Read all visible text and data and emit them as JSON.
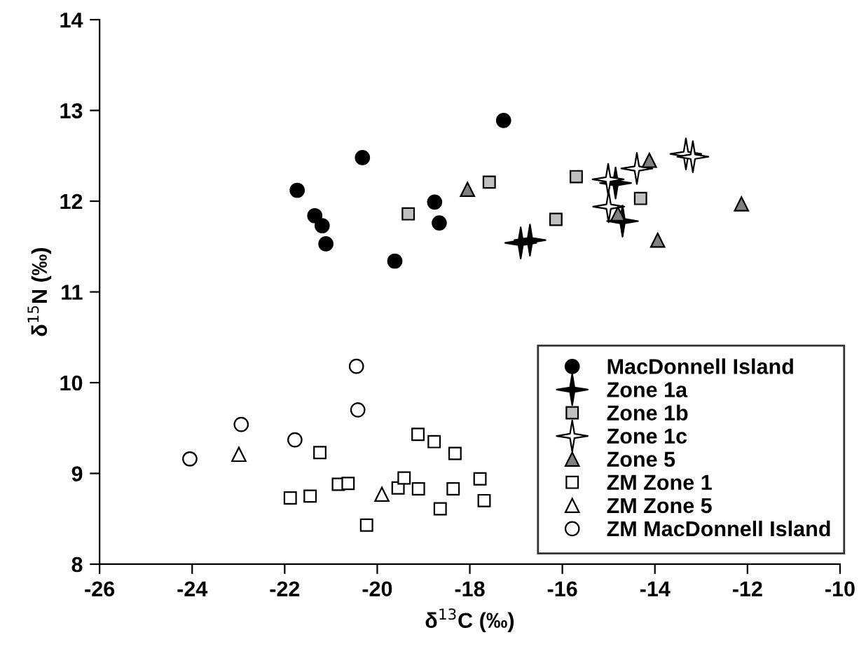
{
  "chart_data": {
    "type": "scatter",
    "xlabel": "δ$^{13}$C (‰)",
    "ylabel": "δ$^{15}$N (‰)",
    "xlim": [
      -26,
      -10
    ],
    "xticks": [
      -26,
      -24,
      -22,
      -20,
      -18,
      -16,
      -14,
      -12,
      -10
    ],
    "ylim": [
      8,
      14
    ],
    "yticks": [
      8,
      9,
      10,
      11,
      12,
      13,
      14
    ],
    "grid": false,
    "legend": "bottom right",
    "series": [
      {
        "name": "MacDonnell Island",
        "color": "#000000",
        "marker": "circle",
        "x": [
          -21.73,
          -20.32,
          -21.35,
          -21.19,
          -21.11,
          -19.62,
          -18.76,
          -18.66,
          -17.27
        ],
        "values": [
          12.12,
          12.48,
          11.84,
          11.73,
          11.53,
          11.34,
          11.99,
          11.76,
          12.89
        ]
      },
      {
        "name": "Zone 1a",
        "color": "#000000",
        "marker": "star",
        "x": [
          -16.9,
          -16.7,
          -14.85,
          -14.7
        ],
        "values": [
          11.54,
          11.57,
          12.2,
          11.78
        ]
      },
      {
        "name": "Zone 1b",
        "color": "#bfbfbf",
        "marker": "square",
        "x": [
          -19.33,
          -17.58,
          -16.14,
          -15.7,
          -14.31
        ],
        "values": [
          11.86,
          12.21,
          11.8,
          12.27,
          12.03
        ]
      },
      {
        "name": "Zone 1c",
        "color": "#ffffff",
        "marker": "star",
        "x": [
          -15.01,
          -14.39,
          -15.0,
          -13.33,
          -13.18
        ],
        "values": [
          12.24,
          12.36,
          11.94,
          12.52,
          12.49
        ]
      },
      {
        "name": "Zone 5",
        "color": "#808080",
        "marker": "triangle",
        "x": [
          -18.05,
          -14.12,
          -14.8,
          -12.13,
          -13.94
        ],
        "values": [
          12.13,
          12.45,
          11.86,
          11.97,
          11.57
        ]
      },
      {
        "name": "ZM Zone 1",
        "color": "#ffffff",
        "marker": "square",
        "x": [
          -21.24,
          -21.88,
          -21.45,
          -20.84,
          -20.63,
          -20.23,
          -19.55,
          -19.42,
          -19.12,
          -19.11,
          -18.77,
          -18.32,
          -18.64,
          -18.36,
          -17.78,
          -17.69
        ],
        "values": [
          9.23,
          8.73,
          8.75,
          8.88,
          8.89,
          8.43,
          8.84,
          8.95,
          9.43,
          8.83,
          9.35,
          9.22,
          8.61,
          8.83,
          8.94,
          8.7
        ]
      },
      {
        "name": "ZM Zone 5",
        "color": "#ffffff",
        "marker": "triangle",
        "x": [
          -22.99,
          -19.9
        ],
        "values": [
          9.21,
          8.77
        ]
      },
      {
        "name": "ZM MacDonnell Island",
        "color": "#ffffff",
        "marker": "circle",
        "x": [
          -24.05,
          -22.94,
          -21.78,
          -20.45,
          -20.42
        ],
        "values": [
          9.16,
          9.54,
          9.37,
          10.18,
          9.7
        ]
      }
    ]
  }
}
